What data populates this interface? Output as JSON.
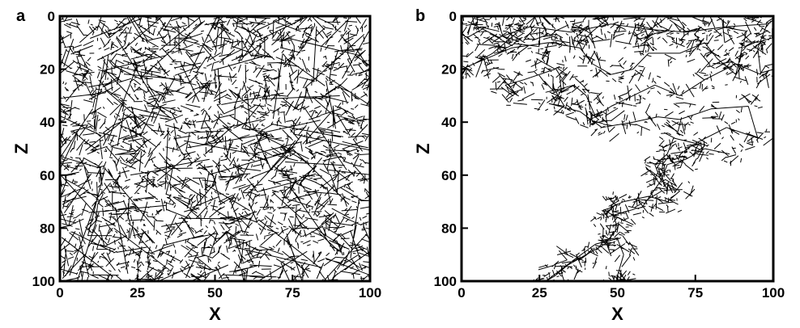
{
  "chart_data": [
    {
      "type": "scatter",
      "panel_label": "a",
      "xlabel": "X",
      "ylabel": "Z",
      "xlim": [
        0,
        100
      ],
      "ylim": [
        0,
        100
      ],
      "y_inverted": true,
      "xticks": [
        "0",
        "25",
        "50",
        "75",
        "100"
      ],
      "yticks": [
        "0",
        "20",
        "40",
        "60",
        "80",
        "100"
      ],
      "network": "dense",
      "line_color": "#000000"
    },
    {
      "type": "scatter",
      "panel_label": "b",
      "xlabel": "X",
      "ylabel": "Z",
      "xlim": [
        0,
        100
      ],
      "ylim": [
        0,
        100
      ],
      "y_inverted": true,
      "xticks": [
        "0",
        "25",
        "50",
        "75",
        "100"
      ],
      "yticks": [
        "0",
        "20",
        "40",
        "60",
        "80",
        "100"
      ],
      "network": "sparse",
      "path": [
        [
          2,
          2
        ],
        [
          12,
          8
        ],
        [
          22,
          4
        ],
        [
          35,
          6
        ],
        [
          48,
          3
        ],
        [
          60,
          5
        ],
        [
          72,
          6
        ],
        [
          85,
          4
        ],
        [
          98,
          3
        ],
        [
          95,
          12
        ],
        [
          96,
          22
        ],
        [
          88,
          18
        ],
        [
          78,
          24
        ],
        [
          70,
          30
        ],
        [
          62,
          26
        ],
        [
          55,
          30
        ],
        [
          48,
          34
        ],
        [
          43,
          38
        ],
        [
          40,
          30
        ],
        [
          36,
          26
        ],
        [
          30,
          28
        ],
        [
          33,
          34
        ],
        [
          28,
          33
        ],
        [
          38,
          36
        ],
        [
          45,
          42
        ],
        [
          55,
          40
        ],
        [
          63,
          38
        ],
        [
          70,
          39
        ],
        [
          80,
          35
        ],
        [
          92,
          34
        ],
        [
          95,
          46
        ],
        [
          85,
          42
        ],
        [
          75,
          48
        ],
        [
          68,
          46
        ],
        [
          66,
          52
        ],
        [
          62,
          56
        ],
        [
          64,
          62
        ],
        [
          70,
          66
        ],
        [
          66,
          70
        ],
        [
          60,
          68
        ],
        [
          52,
          70
        ],
        [
          48,
          72
        ],
        [
          50,
          80
        ],
        [
          46,
          86
        ],
        [
          40,
          90
        ],
        [
          34,
          94
        ],
        [
          30,
          98
        ],
        [
          27,
          100
        ],
        [
          36,
          92
        ],
        [
          43,
          86
        ],
        [
          50,
          84
        ],
        [
          52,
          90
        ],
        [
          50,
          98
        ],
        [
          52,
          100
        ],
        [
          46,
          76
        ],
        [
          52,
          74
        ],
        [
          58,
          72
        ],
        [
          64,
          62
        ],
        [
          66,
          56
        ],
        [
          72,
          54
        ],
        [
          78,
          50
        ],
        [
          86,
          52
        ],
        [
          18,
          6
        ],
        [
          10,
          14
        ],
        [
          4,
          18
        ],
        [
          0,
          20
        ],
        [
          16,
          12
        ],
        [
          28,
          10
        ],
        [
          38,
          12
        ],
        [
          42,
          18
        ],
        [
          48,
          22
        ],
        [
          55,
          20
        ],
        [
          60,
          14
        ],
        [
          70,
          14
        ],
        [
          78,
          10
        ],
        [
          82,
          16
        ],
        [
          88,
          22
        ],
        [
          90,
          12
        ],
        [
          8,
          4
        ],
        [
          2,
          8
        ],
        [
          24,
          16
        ],
        [
          30,
          20
        ],
        [
          20,
          24
        ],
        [
          14,
          26
        ],
        [
          18,
          30
        ],
        [
          12,
          22
        ]
      ]
    }
  ]
}
